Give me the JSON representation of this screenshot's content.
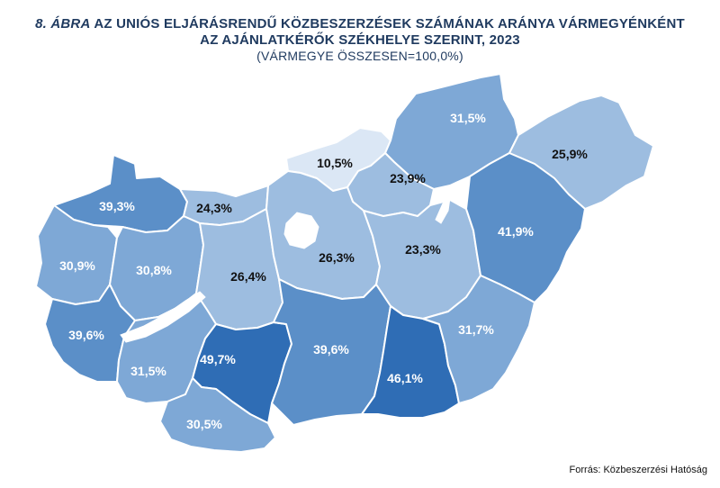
{
  "title": {
    "figure_no": "8. ÁBRA",
    "line1": "AZ UNIÓS ELJÁRÁSRENDŰ KÖZBESZERZÉSEK SZÁMÁNAK ARÁNYA VÁRMEGYÉNKÉNT",
    "line2": "AZ AJÁNLATKÉRŐK SZÉKHELYE SZERINT, 2023",
    "line3": "(VÁRMEGYE ÖSSZESEN=100,0%)"
  },
  "source": "Forrás: Közbeszerzési Hatóság",
  "colors": {
    "lightest": "#dbe7f5",
    "light": "#9dbde0",
    "medium": "#7ea8d6",
    "darker": "#5b8fc8",
    "darkest": "#2f6db5",
    "border": "#ffffff",
    "title": "#1f3a5f"
  },
  "map_data": {
    "type": "choropleth",
    "regions": [
      {
        "id": "gyor",
        "label": "39,3%",
        "value": 39.3
      },
      {
        "id": "komarom",
        "label": "24,3%",
        "value": 24.3
      },
      {
        "id": "nograd",
        "label": "10,5%",
        "value": 10.5
      },
      {
        "id": "borsod",
        "label": "31,5%",
        "value": 31.5
      },
      {
        "id": "szabolcs",
        "label": "25,9%",
        "value": 25.9
      },
      {
        "id": "heves",
        "label": "23,9%",
        "value": 23.9
      },
      {
        "id": "vas",
        "label": "30,9%",
        "value": 30.9
      },
      {
        "id": "veszprem",
        "label": "30,8%",
        "value": 30.8
      },
      {
        "id": "fejer",
        "label": "26,4%",
        "value": 26.4
      },
      {
        "id": "pest",
        "label": "26,3%",
        "value": 26.3
      },
      {
        "id": "szolnok",
        "label": "23,3%",
        "value": 23.3
      },
      {
        "id": "hajdu",
        "label": "41,9%",
        "value": 41.9
      },
      {
        "id": "zala",
        "label": "39,6%",
        "value": 39.6
      },
      {
        "id": "somogy",
        "label": "31,5%",
        "value": 31.5
      },
      {
        "id": "tolna",
        "label": "49,7%",
        "value": 49.7
      },
      {
        "id": "bacs",
        "label": "39,6%",
        "value": 39.6
      },
      {
        "id": "csongrad",
        "label": "46,1%",
        "value": 46.1
      },
      {
        "id": "bekes",
        "label": "31,7%",
        "value": 31.7
      },
      {
        "id": "baranya",
        "label": "30,5%",
        "value": 30.5
      }
    ]
  }
}
